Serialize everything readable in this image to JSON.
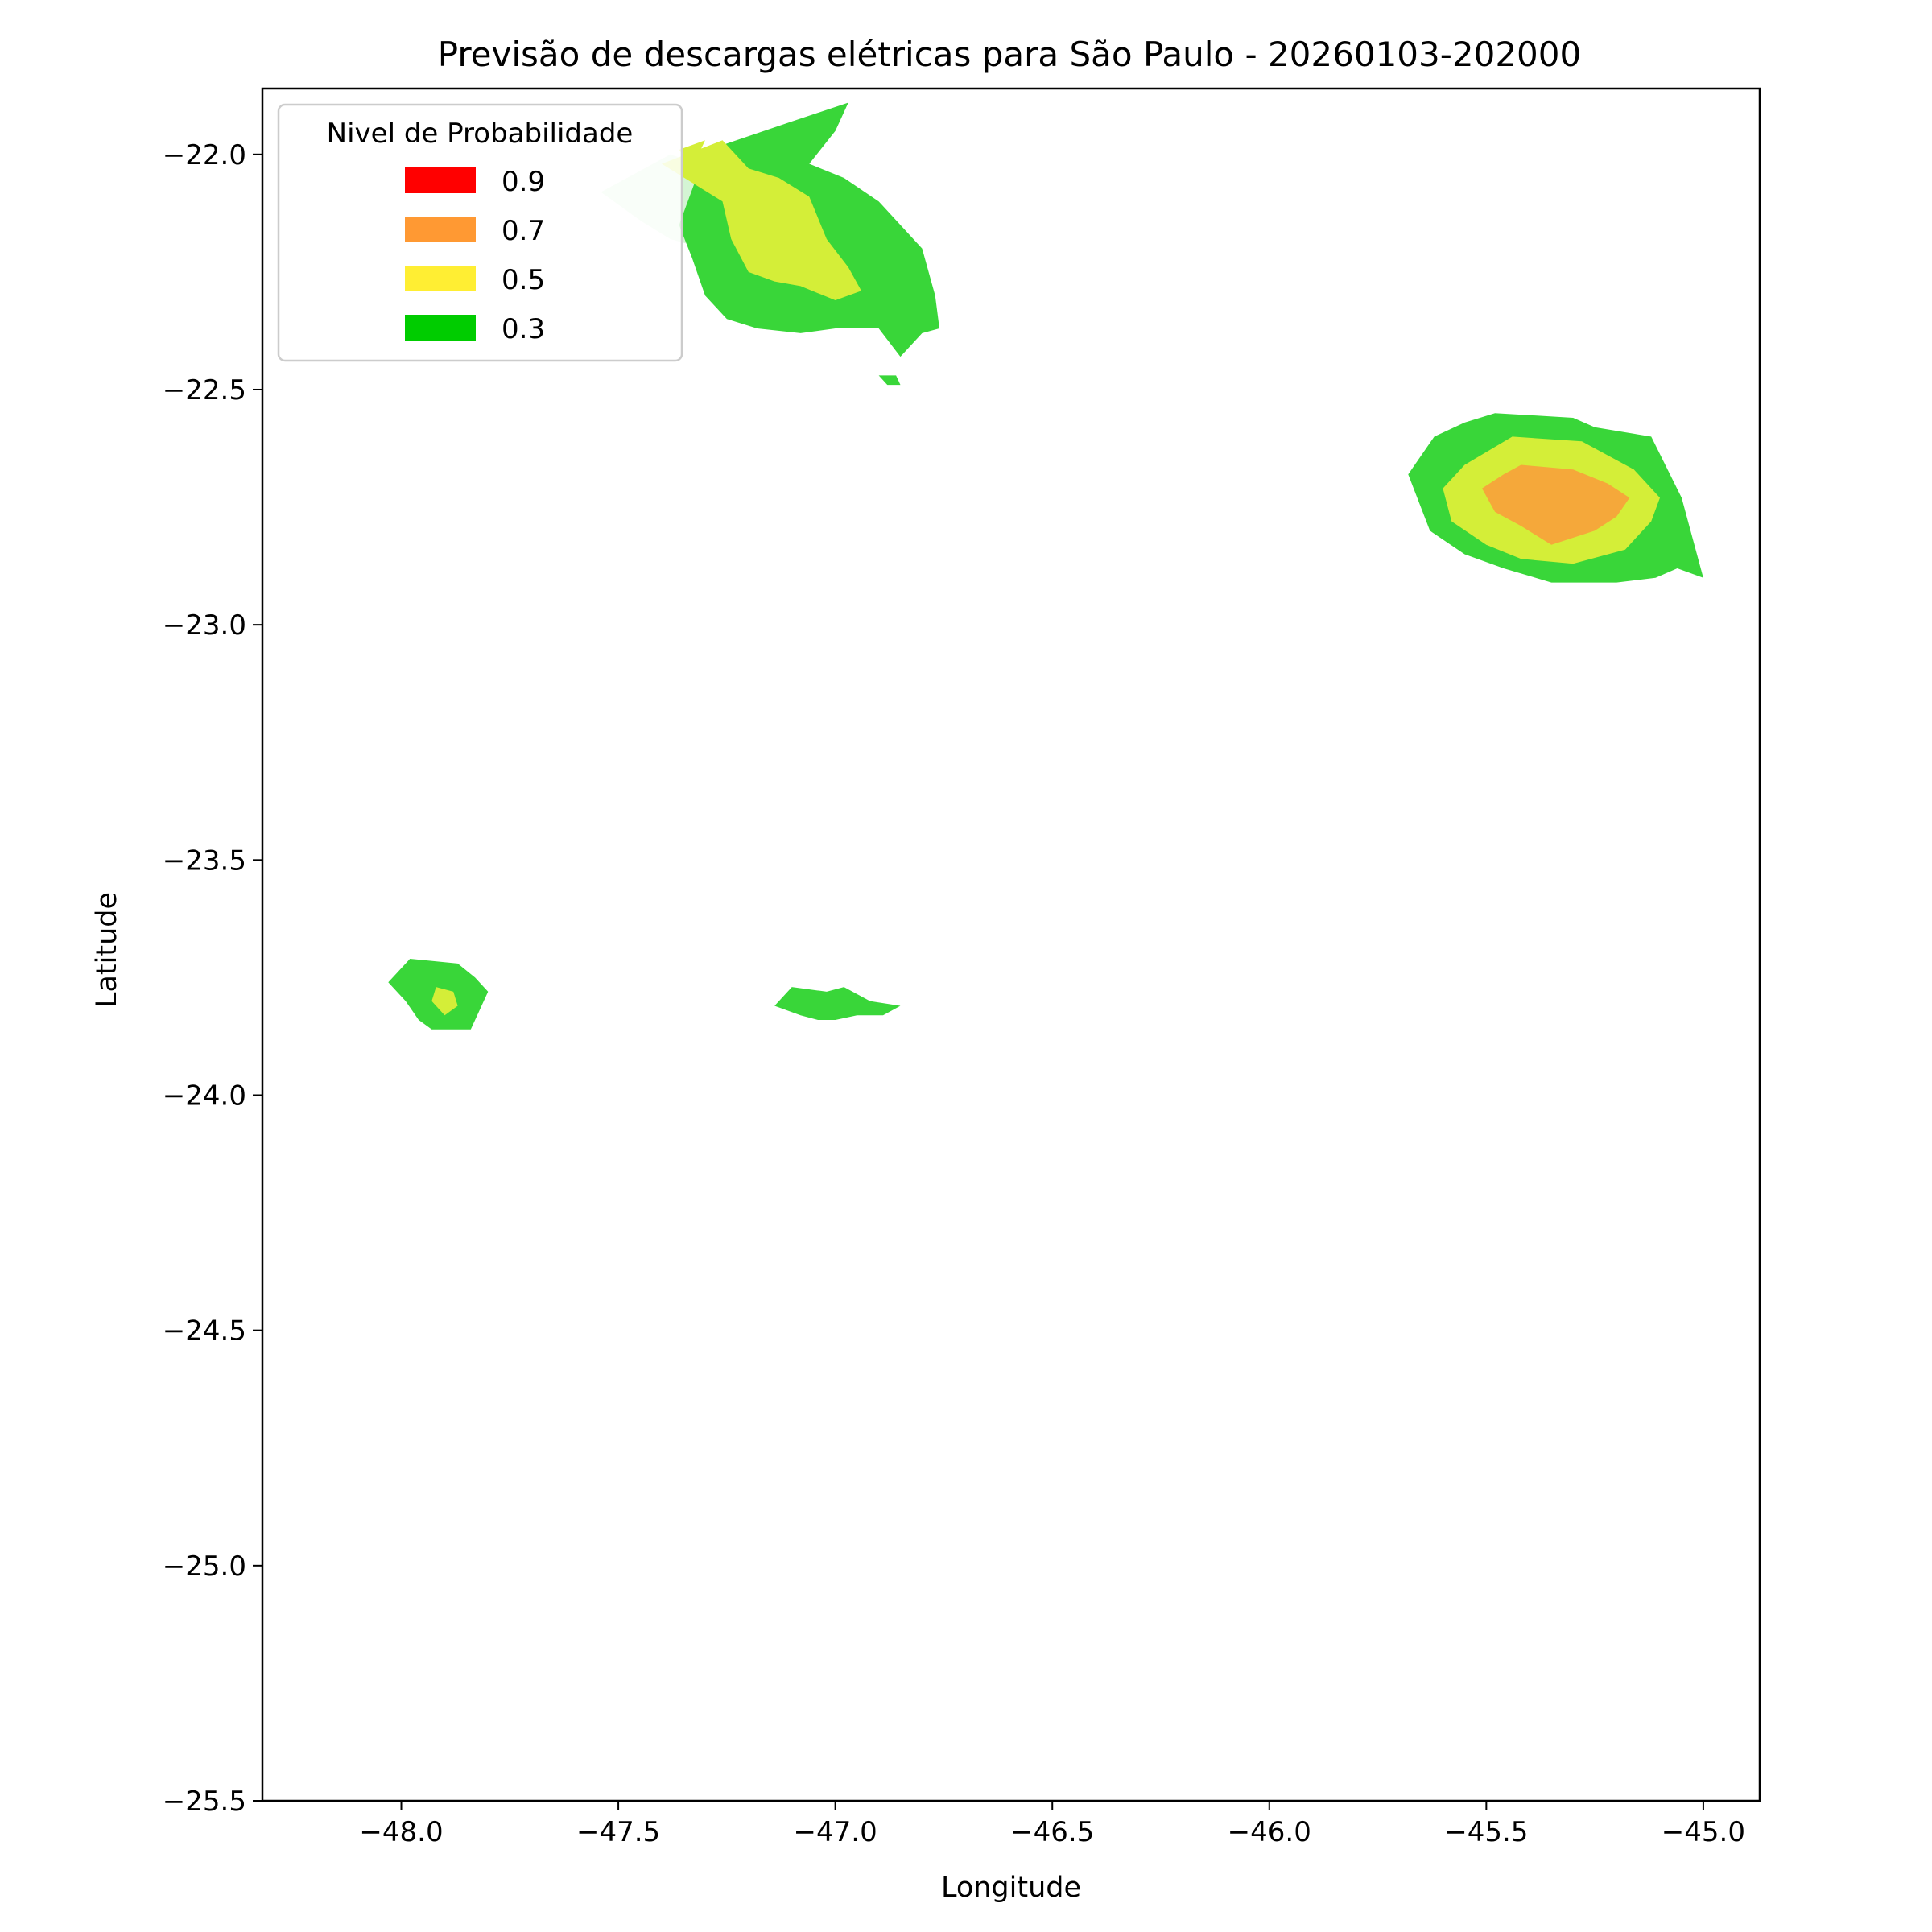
{
  "chart_data": {
    "type": "contour",
    "title": "Previsão de descargas elétricas para São Paulo - 20260103-202000",
    "xlabel": "Longitude",
    "ylabel": "Latitude",
    "xlim": [
      -48.32,
      -44.87
    ],
    "ylim": [
      -25.5,
      -21.86
    ],
    "x_ticks": [
      -48.0,
      -47.5,
      -47.0,
      -46.5,
      -46.0,
      -45.5,
      -45.0
    ],
    "x_tick_labels": [
      "−48.0",
      "−47.5",
      "−47.0",
      "−46.5",
      "−46.0",
      "−45.5",
      "−45.0"
    ],
    "y_ticks": [
      -22.0,
      -22.5,
      -23.0,
      -23.5,
      -24.0,
      -24.5,
      -25.0,
      -25.5
    ],
    "y_tick_labels": [
      "−22.0",
      "−22.5",
      "−23.0",
      "−23.5",
      "−24.0",
      "−24.5",
      "−25.0",
      "−25.5"
    ],
    "legend": {
      "title": "Nivel de Probabilidade",
      "placement": "upper-left",
      "entries": [
        {
          "label": "0.9",
          "color": "#ff0000"
        },
        {
          "label": "0.7",
          "color": "#ff9933"
        },
        {
          "label": "0.5",
          "color": "#ffee33"
        },
        {
          "label": "0.3",
          "color": "#00cc00"
        }
      ]
    },
    "level_colors": {
      "faint": "#d4f4d4",
      "0.3": "#39d639",
      "0.5": "#d4ee38",
      "0.7": "#f5a83a"
    },
    "regions": [
      {
        "name": "northwest-faint",
        "level": "faint",
        "points": [
          [
            -47.54,
            -22.08
          ],
          [
            -47.45,
            -22.14
          ],
          [
            -47.38,
            -22.18
          ],
          [
            -47.3,
            -22.2
          ],
          [
            -47.25,
            -22.12
          ],
          [
            -47.32,
            -22.02
          ],
          [
            -47.38,
            -22.0
          ]
        ]
      },
      {
        "name": "northwest-03",
        "level": "0.3",
        "points": [
          [
            -47.26,
            -21.98
          ],
          [
            -47.1,
            -21.93
          ],
          [
            -46.97,
            -21.89
          ],
          [
            -47.0,
            -21.95
          ],
          [
            -47.06,
            -22.02
          ],
          [
            -46.98,
            -22.05
          ],
          [
            -46.9,
            -22.1
          ],
          [
            -46.8,
            -22.2
          ],
          [
            -46.77,
            -22.3
          ],
          [
            -46.76,
            -22.37
          ],
          [
            -46.8,
            -22.38
          ],
          [
            -46.85,
            -22.43
          ],
          [
            -46.9,
            -22.37
          ],
          [
            -47.0,
            -22.37
          ],
          [
            -47.08,
            -22.38
          ],
          [
            -47.18,
            -22.37
          ],
          [
            -47.25,
            -22.35
          ],
          [
            -47.3,
            -22.3
          ],
          [
            -47.33,
            -22.22
          ],
          [
            -47.36,
            -22.15
          ],
          [
            -47.32,
            -22.05
          ]
        ]
      },
      {
        "name": "northwest-03-islet",
        "level": "0.3",
        "points": [
          [
            -46.9,
            -22.47
          ],
          [
            -46.86,
            -22.47
          ],
          [
            -46.85,
            -22.49
          ],
          [
            -46.88,
            -22.49
          ]
        ]
      },
      {
        "name": "northwest-05",
        "level": "0.5",
        "points": [
          [
            -47.4,
            -22.02
          ],
          [
            -47.26,
            -21.97
          ],
          [
            -47.2,
            -22.03
          ],
          [
            -47.13,
            -22.05
          ],
          [
            -47.06,
            -22.09
          ],
          [
            -47.02,
            -22.18
          ],
          [
            -46.97,
            -22.24
          ],
          [
            -46.94,
            -22.29
          ],
          [
            -47.0,
            -22.31
          ],
          [
            -47.08,
            -22.28
          ],
          [
            -47.14,
            -22.27
          ],
          [
            -47.2,
            -22.25
          ],
          [
            -47.24,
            -22.18
          ],
          [
            -47.26,
            -22.1
          ],
          [
            -47.33,
            -22.06
          ]
        ]
      },
      {
        "name": "northwest-05-islet",
        "level": "0.5",
        "points": [
          [
            -47.36,
            -21.99
          ],
          [
            -47.3,
            -21.97
          ],
          [
            -47.33,
            -22.03
          ]
        ]
      },
      {
        "name": "east-03",
        "level": "0.3",
        "points": [
          [
            -45.48,
            -22.55
          ],
          [
            -45.3,
            -22.56
          ],
          [
            -45.25,
            -22.58
          ],
          [
            -45.12,
            -22.6
          ],
          [
            -45.05,
            -22.73
          ],
          [
            -45.0,
            -22.9
          ],
          [
            -45.06,
            -22.88
          ],
          [
            -45.11,
            -22.9
          ],
          [
            -45.2,
            -22.91
          ],
          [
            -45.35,
            -22.91
          ],
          [
            -45.46,
            -22.88
          ],
          [
            -45.55,
            -22.85
          ],
          [
            -45.63,
            -22.8
          ],
          [
            -45.68,
            -22.68
          ],
          [
            -45.62,
            -22.6
          ],
          [
            -45.55,
            -22.57
          ]
        ]
      },
      {
        "name": "east-05",
        "level": "0.5",
        "points": [
          [
            -45.44,
            -22.6
          ],
          [
            -45.28,
            -22.61
          ],
          [
            -45.16,
            -22.67
          ],
          [
            -45.1,
            -22.73
          ],
          [
            -45.12,
            -22.78
          ],
          [
            -45.18,
            -22.84
          ],
          [
            -45.3,
            -22.87
          ],
          [
            -45.42,
            -22.86
          ],
          [
            -45.5,
            -22.83
          ],
          [
            -45.58,
            -22.78
          ],
          [
            -45.6,
            -22.71
          ],
          [
            -45.55,
            -22.66
          ]
        ]
      },
      {
        "name": "east-07",
        "level": "0.7",
        "points": [
          [
            -45.42,
            -22.66
          ],
          [
            -45.3,
            -22.67
          ],
          [
            -45.22,
            -22.7
          ],
          [
            -45.17,
            -22.73
          ],
          [
            -45.2,
            -22.77
          ],
          [
            -45.25,
            -22.8
          ],
          [
            -45.35,
            -22.83
          ],
          [
            -45.42,
            -22.79
          ],
          [
            -45.48,
            -22.76
          ],
          [
            -45.51,
            -22.71
          ],
          [
            -45.46,
            -22.68
          ]
        ]
      },
      {
        "name": "southwest-03",
        "level": "0.3",
        "points": [
          [
            -47.98,
            -23.71
          ],
          [
            -47.87,
            -23.72
          ],
          [
            -47.83,
            -23.75
          ],
          [
            -47.8,
            -23.78
          ],
          [
            -47.82,
            -23.82
          ],
          [
            -47.84,
            -23.86
          ],
          [
            -47.93,
            -23.86
          ],
          [
            -47.96,
            -23.84
          ],
          [
            -47.99,
            -23.8
          ],
          [
            -48.03,
            -23.76
          ]
        ]
      },
      {
        "name": "southwest-05",
        "level": "0.5",
        "points": [
          [
            -47.92,
            -23.77
          ],
          [
            -47.88,
            -23.78
          ],
          [
            -47.87,
            -23.81
          ],
          [
            -47.9,
            -23.83
          ],
          [
            -47.93,
            -23.8
          ]
        ]
      },
      {
        "name": "south-center-03",
        "level": "0.3",
        "points": [
          [
            -47.1,
            -23.77
          ],
          [
            -47.02,
            -23.78
          ],
          [
            -46.98,
            -23.77
          ],
          [
            -46.92,
            -23.8
          ],
          [
            -46.85,
            -23.81
          ],
          [
            -46.89,
            -23.83
          ],
          [
            -46.95,
            -23.83
          ],
          [
            -47.0,
            -23.84
          ],
          [
            -47.04,
            -23.84
          ],
          [
            -47.08,
            -23.83
          ],
          [
            -47.14,
            -23.81
          ]
        ]
      }
    ]
  }
}
